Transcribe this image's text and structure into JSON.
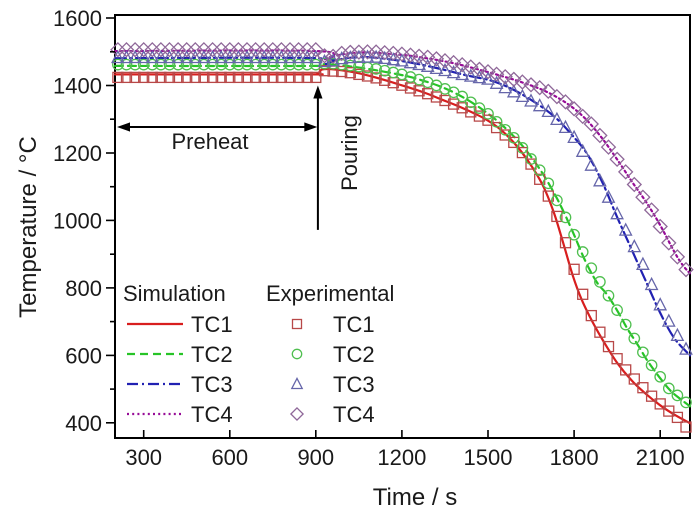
{
  "chart_data": {
    "type": "line",
    "title": "",
    "xlabel": "Time / s",
    "ylabel": "Temperature / °C",
    "xlim": [
      200,
      2204
    ],
    "ylim": [
      355,
      1609
    ],
    "xticks": [
      300,
      600,
      900,
      1200,
      1500,
      1800,
      2100
    ],
    "yticks": [
      400,
      600,
      800,
      1000,
      1200,
      1400,
      1600
    ],
    "y_minor_step": 100,
    "grid": false,
    "frame_color": "#000000",
    "legend": {
      "position": "lower-left-inside",
      "sim_header": "Simulation",
      "exp_header": "Experimental"
    },
    "annotations": {
      "preheat": {
        "label": "Preheat",
        "t_start": 200,
        "t_end": 905,
        "T": 1277,
        "label_t": 540,
        "label_T": 1215
      },
      "pouring": {
        "label": "Pouring",
        "t": 907,
        "T_from": 972,
        "T_to": 1400,
        "label_t": 1018,
        "label_T": 1198
      }
    },
    "series_sim": [
      {
        "name": "TC1",
        "color": "#d81e1e",
        "dash": "solid",
        "points": [
          [
            200,
            1433
          ],
          [
            860,
            1433
          ],
          [
            905,
            1435
          ],
          [
            920,
            1447
          ],
          [
            945,
            1449
          ],
          [
            990,
            1445
          ],
          [
            1040,
            1438
          ],
          [
            1090,
            1428
          ],
          [
            1140,
            1416
          ],
          [
            1190,
            1403
          ],
          [
            1240,
            1390
          ],
          [
            1290,
            1375
          ],
          [
            1340,
            1358
          ],
          [
            1390,
            1341
          ],
          [
            1440,
            1322
          ],
          [
            1490,
            1301
          ],
          [
            1540,
            1272
          ],
          [
            1590,
            1231
          ],
          [
            1640,
            1176
          ],
          [
            1690,
            1106
          ],
          [
            1730,
            1022
          ],
          [
            1765,
            925
          ],
          [
            1795,
            838
          ],
          [
            1825,
            768
          ],
          [
            1865,
            698
          ],
          [
            1905,
            638
          ],
          [
            1950,
            578
          ],
          [
            2000,
            526
          ],
          [
            2050,
            486
          ],
          [
            2100,
            452
          ],
          [
            2150,
            424
          ],
          [
            2204,
            399
          ]
        ]
      },
      {
        "name": "TC2",
        "color": "#27c427",
        "dash": "dashed",
        "points": [
          [
            200,
            1458
          ],
          [
            900,
            1458
          ],
          [
            928,
            1463
          ],
          [
            975,
            1461
          ],
          [
            1025,
            1456
          ],
          [
            1075,
            1450
          ],
          [
            1125,
            1443
          ],
          [
            1175,
            1435
          ],
          [
            1225,
            1426
          ],
          [
            1275,
            1414
          ],
          [
            1325,
            1400
          ],
          [
            1375,
            1382
          ],
          [
            1425,
            1359
          ],
          [
            1475,
            1332
          ],
          [
            1525,
            1300
          ],
          [
            1575,
            1262
          ],
          [
            1625,
            1216
          ],
          [
            1675,
            1159
          ],
          [
            1720,
            1097
          ],
          [
            1760,
            1032
          ],
          [
            1800,
            957
          ],
          [
            1840,
            878
          ],
          [
            1880,
            816
          ],
          [
            1915,
            780
          ],
          [
            1955,
            726
          ],
          [
            1985,
            680
          ],
          [
            2025,
            627
          ],
          [
            2055,
            585
          ],
          [
            2095,
            538
          ],
          [
            2135,
            496
          ],
          [
            2170,
            471
          ],
          [
            2204,
            449
          ]
        ]
      },
      {
        "name": "TC3",
        "color": "#2121b2",
        "dash": "dashdot",
        "points": [
          [
            200,
            1481
          ],
          [
            905,
            1481
          ],
          [
            932,
            1464
          ],
          [
            962,
            1473
          ],
          [
            1000,
            1480
          ],
          [
            1050,
            1484
          ],
          [
            1100,
            1483
          ],
          [
            1180,
            1475
          ],
          [
            1260,
            1463
          ],
          [
            1340,
            1448
          ],
          [
            1420,
            1431
          ],
          [
            1500,
            1417
          ],
          [
            1560,
            1399
          ],
          [
            1620,
            1373
          ],
          [
            1690,
            1335
          ],
          [
            1740,
            1301
          ],
          [
            1790,
            1256
          ],
          [
            1845,
            1198
          ],
          [
            1900,
            1110
          ],
          [
            1950,
            1010
          ],
          [
            2000,
            915
          ],
          [
            2050,
            820
          ],
          [
            2100,
            726
          ],
          [
            2150,
            650
          ],
          [
            2204,
            600
          ]
        ]
      },
      {
        "name": "TC4",
        "color": "#970c97",
        "dash": "dotted",
        "points": [
          [
            200,
            1502
          ],
          [
            905,
            1502
          ],
          [
            932,
            1477
          ],
          [
            968,
            1488
          ],
          [
            1012,
            1495
          ],
          [
            1070,
            1498
          ],
          [
            1140,
            1495
          ],
          [
            1220,
            1489
          ],
          [
            1300,
            1479
          ],
          [
            1380,
            1466
          ],
          [
            1460,
            1449
          ],
          [
            1540,
            1430
          ],
          [
            1620,
            1409
          ],
          [
            1700,
            1383
          ],
          [
            1775,
            1347
          ],
          [
            1840,
            1301
          ],
          [
            1900,
            1241
          ],
          [
            1950,
            1181
          ],
          [
            2000,
            1117
          ],
          [
            2050,
            1056
          ],
          [
            2100,
            986
          ],
          [
            2150,
            906
          ],
          [
            2180,
            866
          ],
          [
            2204,
            843
          ]
        ]
      }
    ],
    "series_exp": [
      {
        "name": "TC1",
        "color": "#b84848",
        "marker": "square",
        "marker_interval_s": 30,
        "anchors": [
          [
            210,
            1424
          ],
          [
            900,
            1424
          ],
          [
            930,
            1444
          ],
          [
            1000,
            1441
          ],
          [
            1100,
            1425
          ],
          [
            1200,
            1401
          ],
          [
            1300,
            1373
          ],
          [
            1400,
            1338
          ],
          [
            1500,
            1297
          ],
          [
            1600,
            1224
          ],
          [
            1650,
            1167
          ],
          [
            1700,
            1092
          ],
          [
            1740,
            1012
          ],
          [
            1780,
            908
          ],
          [
            1820,
            802
          ],
          [
            1870,
            697
          ],
          [
            1920,
            626
          ],
          [
            1970,
            566
          ],
          [
            2020,
            521
          ],
          [
            2070,
            479
          ],
          [
            2120,
            441
          ],
          [
            2160,
            416
          ],
          [
            2195,
            383
          ]
        ]
      },
      {
        "name": "TC2",
        "color": "#4fbf4f",
        "marker": "circle",
        "marker_interval_s": 30,
        "anchors": [
          [
            210,
            1462
          ],
          [
            900,
            1462
          ],
          [
            940,
            1466
          ],
          [
            1000,
            1461
          ],
          [
            1100,
            1451
          ],
          [
            1200,
            1433
          ],
          [
            1300,
            1407
          ],
          [
            1400,
            1373
          ],
          [
            1500,
            1316
          ],
          [
            1600,
            1237
          ],
          [
            1700,
            1127
          ],
          [
            1780,
            992
          ],
          [
            1850,
            872
          ],
          [
            1920,
            777
          ],
          [
            1990,
            677
          ],
          [
            2060,
            582
          ],
          [
            2130,
            502
          ],
          [
            2195,
            457
          ]
        ]
      },
      {
        "name": "TC3",
        "color": "#6666aa",
        "marker": "triangle",
        "marker_interval_s": 30,
        "anchors": [
          [
            210,
            1483
          ],
          [
            900,
            1483
          ],
          [
            938,
            1468
          ],
          [
            1000,
            1482
          ],
          [
            1100,
            1485
          ],
          [
            1200,
            1473
          ],
          [
            1300,
            1455
          ],
          [
            1400,
            1434
          ],
          [
            1500,
            1419
          ],
          [
            1600,
            1377
          ],
          [
            1700,
            1331
          ],
          [
            1790,
            1260
          ],
          [
            1870,
            1150
          ],
          [
            1950,
            1020
          ],
          [
            2030,
            890
          ],
          [
            2110,
            730
          ],
          [
            2170,
            645
          ],
          [
            2195,
            612
          ]
        ]
      },
      {
        "name": "TC4",
        "color": "#8f6899",
        "marker": "diamond",
        "marker_interval_s": 30,
        "anchors": [
          [
            210,
            1506
          ],
          [
            900,
            1506
          ],
          [
            942,
            1481
          ],
          [
            1000,
            1498
          ],
          [
            1100,
            1500
          ],
          [
            1200,
            1493
          ],
          [
            1300,
            1483
          ],
          [
            1400,
            1464
          ],
          [
            1500,
            1441
          ],
          [
            1600,
            1416
          ],
          [
            1700,
            1388
          ],
          [
            1780,
            1346
          ],
          [
            1860,
            1286
          ],
          [
            1930,
            1206
          ],
          [
            2000,
            1119
          ],
          [
            2070,
            1031
          ],
          [
            2140,
            917
          ],
          [
            2195,
            848
          ]
        ]
      }
    ]
  }
}
